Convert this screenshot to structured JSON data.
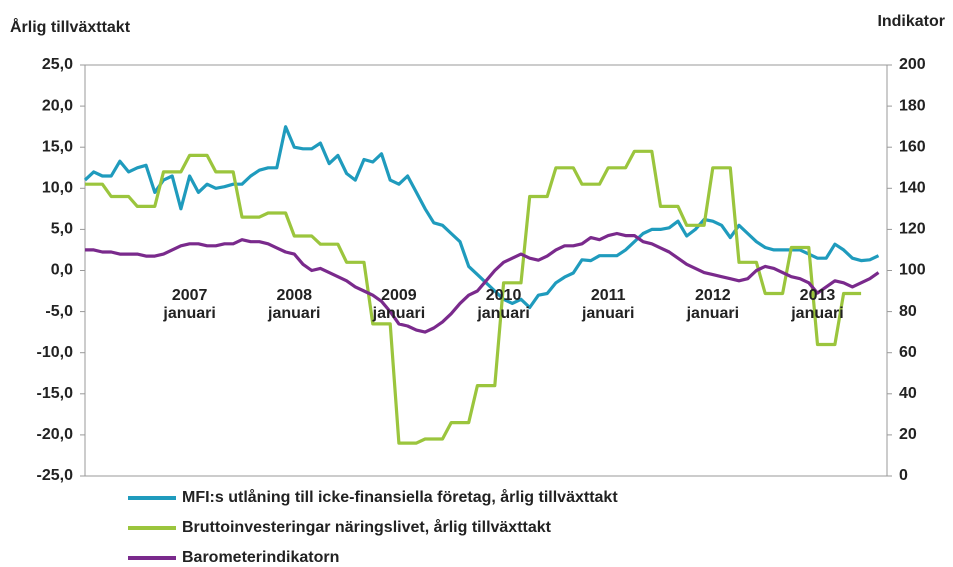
{
  "chart_data": {
    "type": "line",
    "y_label": "Årlig tillväxttakt",
    "y2_label": "Indikator",
    "categories": [
      null,
      null,
      null,
      null,
      null,
      null,
      null,
      null,
      null,
      null,
      null,
      null,
      "2007 januari",
      null,
      null,
      null,
      null,
      null,
      null,
      null,
      null,
      null,
      null,
      null,
      "2008 januari",
      null,
      null,
      null,
      null,
      null,
      null,
      null,
      null,
      null,
      null,
      null,
      "2009 januari",
      null,
      null,
      null,
      null,
      null,
      null,
      null,
      null,
      null,
      null,
      null,
      "2010 januari",
      null,
      null,
      null,
      null,
      null,
      null,
      null,
      null,
      null,
      null,
      null,
      "2011 januari",
      null,
      null,
      null,
      null,
      null,
      null,
      null,
      null,
      null,
      null,
      null,
      "2012 januari",
      null,
      null,
      null,
      null,
      null,
      null,
      null,
      null,
      null,
      null,
      null,
      "2013 januari",
      null,
      null,
      null,
      null,
      null,
      null,
      null
    ],
    "ylim": [
      -25,
      25
    ],
    "yticks": [
      {
        "value": -25,
        "label": "-25,0"
      },
      {
        "value": -20,
        "label": "-20,0"
      },
      {
        "value": -15,
        "label": "-15,0"
      },
      {
        "value": -10,
        "label": "-10,0"
      },
      {
        "value": -5,
        "label": "-5,0"
      },
      {
        "value": 0,
        "label": "0,0"
      },
      {
        "value": 5,
        "label": "5,0"
      },
      {
        "value": 10,
        "label": "10,0"
      },
      {
        "value": 15,
        "label": "15,0"
      },
      {
        "value": 20,
        "label": "20,0"
      },
      {
        "value": 25,
        "label": "25,0"
      }
    ],
    "y2lim": [
      0,
      200
    ],
    "y2ticks": [
      0,
      20,
      40,
      60,
      80,
      100,
      120,
      140,
      160,
      180,
      200
    ],
    "grid": false,
    "series": [
      {
        "name": "MFI:s utlåning till icke-finansiella företag, årlig tillväxttakt",
        "color": "#1f9bbd",
        "values": [
          11,
          12,
          11.5,
          11.5,
          13.3,
          12,
          12.5,
          12.8,
          9.5,
          11,
          11.5,
          7.5,
          11.5,
          9.5,
          10.5,
          10,
          10.2,
          10.5,
          10.5,
          11.5,
          12.2,
          12.5,
          12.5,
          17.5,
          15,
          14.8,
          14.8,
          15.5,
          13,
          14,
          11.8,
          11,
          13.5,
          13.2,
          14.2,
          11,
          10.5,
          11.5,
          9.5,
          7.5,
          5.8,
          5.5,
          4.5,
          3.5,
          0.5,
          -0.5,
          -1.5,
          -2.5,
          -3.5,
          -4,
          -3.5,
          -4.5,
          -3,
          -2.8,
          -1.5,
          -0.8,
          -0.3,
          1.3,
          1.2,
          1.8,
          1.8,
          1.8,
          2.5,
          3.5,
          4.5,
          5,
          5,
          5.2,
          6,
          4.2,
          5,
          6.2,
          6,
          5.5,
          4,
          5.5,
          4.5,
          3.5,
          2.8,
          2.5,
          2.5,
          2.5,
          2.5,
          2,
          1.5,
          1.5,
          3.2,
          2.5,
          1.5,
          1.2,
          1.3,
          1.8
        ]
      },
      {
        "name": "Bruttoinvesteringar näringslivet, årlig tillväxttakt",
        "color": "#9bc53d",
        "values": [
          10.5,
          10.5,
          10.5,
          9,
          9,
          9,
          7.8,
          7.8,
          7.8,
          12,
          12,
          12,
          14,
          14,
          14,
          12,
          12,
          12,
          6.5,
          6.5,
          6.5,
          7,
          7,
          7,
          4.2,
          4.2,
          4.2,
          3.2,
          3.2,
          3.2,
          1,
          1,
          1,
          -6.5,
          -6.5,
          -6.5,
          -21,
          -21,
          -21,
          -20.5,
          -20.5,
          -20.5,
          -18.5,
          -18.5,
          -18.5,
          -14,
          -14,
          -14,
          -1.5,
          -1.5,
          -1.5,
          9,
          9,
          9,
          12.5,
          12.5,
          12.5,
          10.5,
          10.5,
          10.5,
          12.5,
          12.5,
          12.5,
          14.5,
          14.5,
          14.5,
          7.8,
          7.8,
          7.8,
          5.5,
          5.5,
          5.5,
          12.5,
          12.5,
          12.5,
          1,
          1,
          1,
          -2.8,
          -2.8,
          -2.8,
          2.8,
          2.8,
          2.8,
          -9,
          -9,
          -9,
          -2.8,
          -2.8,
          -2.8,
          null,
          null
        ]
      },
      {
        "name": "Barometerindikatorn",
        "color": "#7a2a8c",
        "axis": "y2",
        "values": [
          110,
          110,
          109,
          109,
          108,
          108,
          108,
          107,
          107,
          108,
          110,
          112,
          113,
          113,
          112,
          112,
          113,
          113,
          115,
          114,
          114,
          113,
          111,
          109,
          108,
          103,
          100,
          101,
          99,
          97,
          95,
          92,
          90,
          88,
          85,
          80,
          74,
          73,
          71,
          70,
          72,
          75,
          79,
          84,
          88,
          90,
          95,
          100,
          104,
          106,
          108,
          106,
          105,
          107,
          110,
          112,
          112,
          113,
          116,
          115,
          117,
          118,
          117,
          117,
          114,
          113,
          111,
          109,
          106,
          103,
          101,
          99,
          98,
          97,
          96,
          95,
          96,
          100,
          102,
          101,
          99,
          97,
          96,
          94,
          89,
          92,
          95,
          94,
          92,
          94,
          96,
          99
        ]
      }
    ]
  }
}
